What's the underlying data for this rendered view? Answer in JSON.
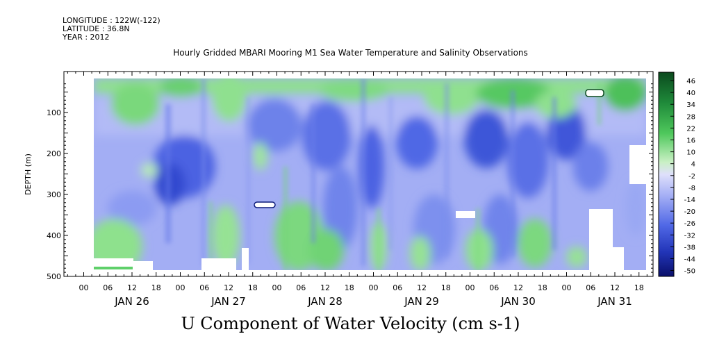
{
  "header": {
    "longitude": "LONGITUDE : 122W(-122)",
    "latitude": "LATITUDE : 36.8N",
    "year": "YEAR : 2012"
  },
  "chart_data": {
    "type": "heatmap",
    "title": "Hourly Gridded MBARI Mooring M1 Sea Water Temperature and Salinity Observations",
    "subtitle": "U Component of Water Velocity (cm s-1)",
    "ylabel": "DEPTH (m)",
    "y_ticks": [
      100,
      200,
      300,
      400,
      500
    ],
    "ylim": [
      500,
      0
    ],
    "y_reversed": true,
    "x_hour_labels": [
      "00",
      "06",
      "12",
      "18",
      "00",
      "06",
      "12",
      "18",
      "00",
      "06",
      "12",
      "18",
      "00",
      "06",
      "12",
      "18",
      "00",
      "06",
      "12",
      "18",
      "00",
      "06",
      "12",
      "18"
    ],
    "x_day_labels": [
      "JAN 26",
      "JAN 27",
      "JAN 28",
      "JAN 29",
      "JAN 30",
      "JAN 31"
    ],
    "colorbar": {
      "labels": [
        "46",
        "40",
        "34",
        "28",
        "22",
        "16",
        "10",
        "4",
        "-2",
        "-8",
        "-14",
        "-20",
        "-26",
        "-32",
        "-38",
        "-44",
        "-50"
      ],
      "range": [
        -50,
        50
      ]
    },
    "colors": {
      "strong_negative": "#1a2ca8",
      "moderate_negative": "#5b74e8",
      "weak_negative": "#9aa6f4",
      "near_zero": "#d4f0d4",
      "weak_positive": "#9ee69e",
      "moderate_positive": "#5fd06a",
      "strong_positive": "#1e8a3a"
    },
    "field_description": "Mostly weak westward (negative) flow of about -8 to -20 cm/s at depth with stronger cores of -26 to -32 cm/s near 150-300 m; near-surface band above 100 m shows eastward (positive) flow of about +4 to +16 cm/s; scattered positive patches at 350-480 m depth."
  }
}
